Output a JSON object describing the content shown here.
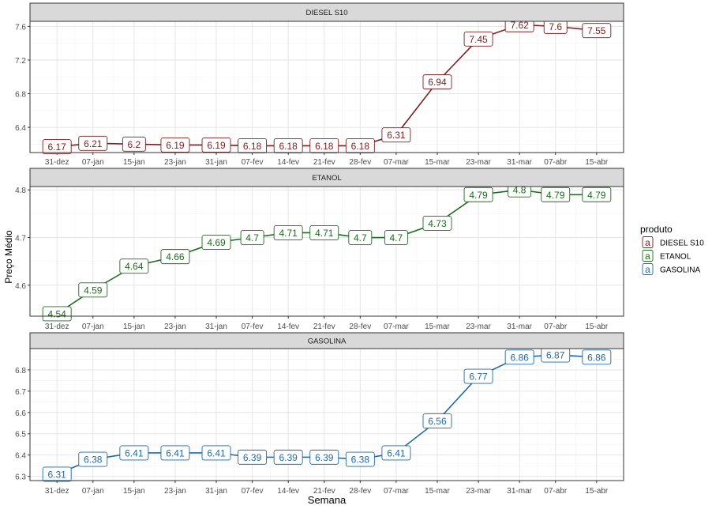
{
  "chart_data": {
    "type": "line",
    "xlabel": "Semana",
    "ylabel": "Preço Médio",
    "categories": [
      "31-dez",
      "07-jan",
      "15-jan",
      "23-jan",
      "31-jan",
      "07-fev",
      "14-fev",
      "21-fev",
      "28-fev",
      "07-mar",
      "15-mar",
      "23-mar",
      "31-mar",
      "07-abr",
      "15-abr"
    ],
    "x_days": [
      0,
      7,
      15,
      23,
      31,
      38,
      45,
      52,
      59,
      66,
      74,
      82,
      90,
      97,
      105
    ],
    "grid": true,
    "legend": {
      "title": "produto",
      "placement": "right",
      "key_glyph": "a"
    },
    "panels": [
      {
        "name": "DIESEL S10",
        "color": "#7a1f1f",
        "ylim": [
          6.1,
          7.66
        ],
        "yticks": [
          6.4,
          6.8,
          7.2,
          7.6
        ],
        "ytick_labels": [
          "6.4",
          "6.8",
          "7.2",
          "7.6"
        ],
        "values": [
          6.17,
          6.21,
          6.2,
          6.19,
          6.19,
          6.18,
          6.18,
          6.18,
          6.18,
          6.31,
          6.94,
          7.45,
          7.62,
          7.6,
          7.55
        ],
        "labels": [
          "6.17",
          "6.21",
          "6.2",
          "6.19",
          "6.19",
          "6.18",
          "6.18",
          "6.18",
          "6.18",
          "6.31",
          "6.94",
          "7.45",
          "7.62",
          "7.6",
          "7.55"
        ]
      },
      {
        "name": "ETANOL",
        "color": "#1e6b1e",
        "ylim": [
          4.535,
          4.807
        ],
        "yticks": [
          4.6,
          4.7,
          4.8
        ],
        "ytick_labels": [
          "4.6",
          "4.7",
          "4.8"
        ],
        "values": [
          4.54,
          4.59,
          4.64,
          4.66,
          4.69,
          4.7,
          4.71,
          4.71,
          4.7,
          4.7,
          4.73,
          4.79,
          4.8,
          4.79,
          4.79
        ],
        "labels": [
          "4.54",
          "4.59",
          "4.64",
          "4.66",
          "4.69",
          "4.7",
          "4.71",
          "4.71",
          "4.7",
          "4.7",
          "4.73",
          "4.79",
          "4.8",
          "4.79",
          "4.79"
        ]
      },
      {
        "name": "GASOLINA",
        "color": "#1f6aa5",
        "ylim": [
          6.28,
          6.9
        ],
        "yticks": [
          6.3,
          6.4,
          6.5,
          6.6,
          6.7,
          6.8
        ],
        "ytick_labels": [
          "6.3",
          "6.4",
          "6.5",
          "6.6",
          "6.7",
          "6.8"
        ],
        "values": [
          6.31,
          6.38,
          6.41,
          6.41,
          6.41,
          6.39,
          6.39,
          6.39,
          6.38,
          6.41,
          6.56,
          6.77,
          6.86,
          6.87,
          6.86
        ],
        "labels": [
          "6.31",
          "6.38",
          "6.41",
          "6.41",
          "6.41",
          "6.39",
          "6.39",
          "6.39",
          "6.38",
          "6.41",
          "6.56",
          "6.77",
          "6.86",
          "6.87",
          "6.86"
        ]
      }
    ]
  }
}
